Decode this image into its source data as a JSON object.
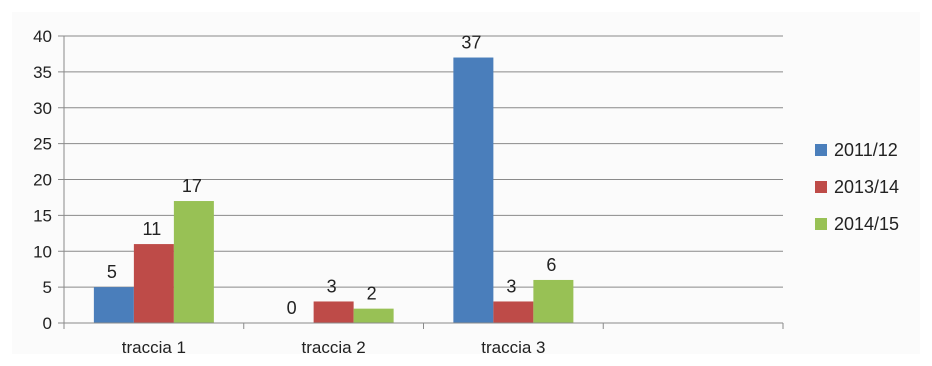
{
  "chart_data": {
    "type": "bar",
    "categories": [
      "traccia 1",
      "traccia 2",
      "traccia 3",
      ""
    ],
    "series": [
      {
        "name": "2011/12",
        "color": "#4a7ebb",
        "values": [
          5,
          0,
          37,
          null
        ]
      },
      {
        "name": "2013/14",
        "color": "#be4b48",
        "values": [
          11,
          3,
          3,
          null
        ]
      },
      {
        "name": "2014/15",
        "color": "#98c155",
        "values": [
          17,
          2,
          6,
          null
        ]
      }
    ],
    "ylim": [
      0,
      40
    ],
    "yticks": [
      "0",
      "5",
      "10",
      "15",
      "20",
      "25",
      "30",
      "35",
      "40"
    ],
    "grid": true,
    "legend_position": "right",
    "title": "",
    "xlabel": "",
    "ylabel": ""
  }
}
